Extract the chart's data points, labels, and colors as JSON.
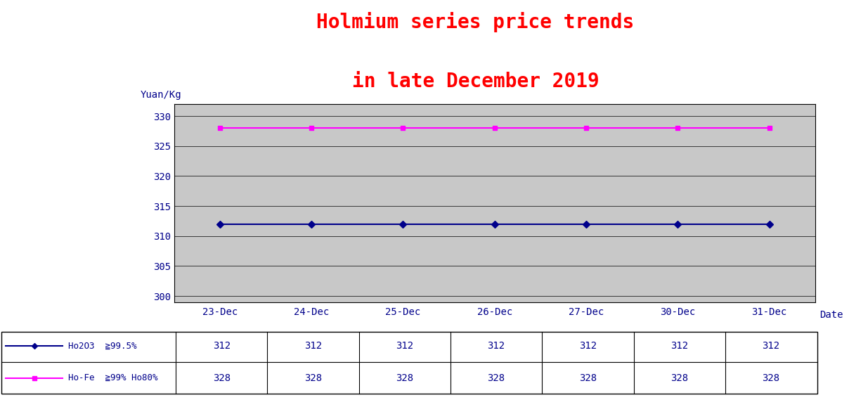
{
  "title_line1": "Holmium series price trends",
  "title_line2": "in late December 2019",
  "title_color": "red",
  "title_fontsize": 20,
  "yuan_kg_label": "Yuan/Kg",
  "date_label": "Date",
  "dates": [
    "23-Dec",
    "24-Dec",
    "25-Dec",
    "26-Dec",
    "27-Dec",
    "30-Dec",
    "31-Dec"
  ],
  "series": [
    {
      "label": "Ho2O3  ≧99.5%",
      "values": [
        312,
        312,
        312,
        312,
        312,
        312,
        312
      ],
      "color": "#00008B",
      "marker": "D",
      "markersize": 5,
      "linewidth": 1.5
    },
    {
      "label": "Ho-Fe  ≧99% Ho80%",
      "values": [
        328,
        328,
        328,
        328,
        328,
        328,
        328
      ],
      "color": "magenta",
      "marker": "s",
      "markersize": 5,
      "linewidth": 1.5
    }
  ],
  "ylim": [
    299,
    332
  ],
  "yticks": [
    300,
    305,
    310,
    315,
    320,
    325,
    330
  ],
  "plot_bg_color": "#C8C8C8",
  "font_family": "monospace",
  "font_color": "#00008B"
}
